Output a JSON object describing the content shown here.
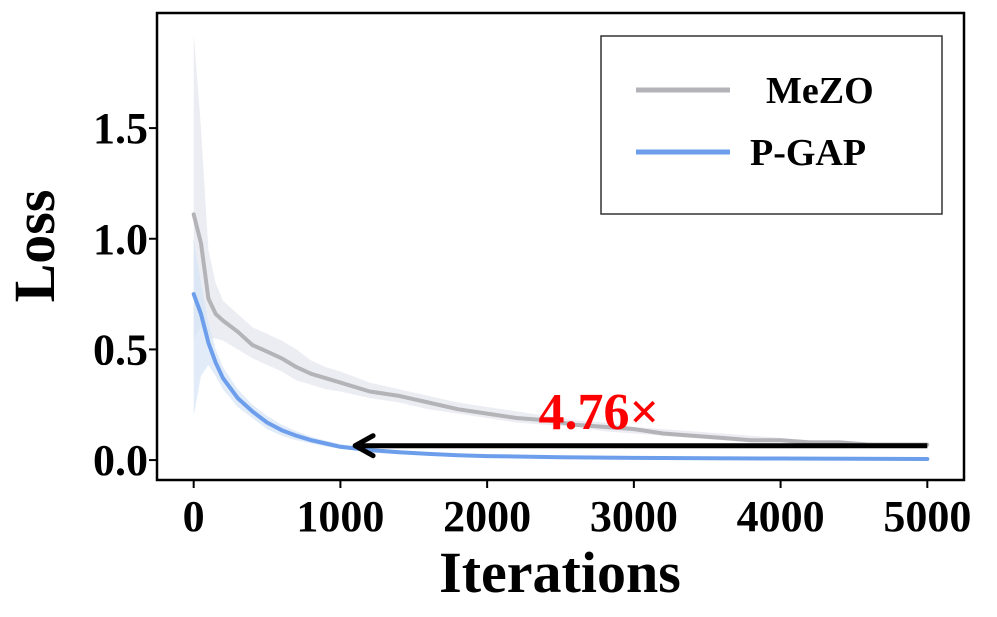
{
  "chart_data": {
    "type": "line",
    "xlabel": "Iterations",
    "ylabel": "Loss",
    "xlim": [
      -250,
      5250
    ],
    "ylim": [
      -0.09,
      2.02
    ],
    "xticks": [
      0,
      1000,
      2000,
      3000,
      4000,
      5000
    ],
    "xtick_labels": [
      "0",
      "1000",
      "2000",
      "3000",
      "4000",
      "5000"
    ],
    "yticks": [
      0.0,
      0.5,
      1.0,
      1.5
    ],
    "ytick_labels": [
      "0.0",
      "0.5",
      "1.0",
      "1.5"
    ],
    "grid": false,
    "legend_position": "top-right",
    "series": [
      {
        "name": "MeZO",
        "color": "#b3b3b8",
        "band_color": "#e4e6ee",
        "x": [
          0,
          50,
          100,
          150,
          200,
          300,
          400,
          500,
          600,
          700,
          800,
          900,
          1000,
          1200,
          1400,
          1600,
          1800,
          2000,
          2200,
          2400,
          2600,
          2800,
          3000,
          3200,
          3400,
          3600,
          3800,
          4000,
          4200,
          4400,
          4600,
          4800,
          5000
        ],
        "y": [
          1.11,
          0.98,
          0.73,
          0.66,
          0.63,
          0.58,
          0.52,
          0.49,
          0.46,
          0.42,
          0.39,
          0.37,
          0.35,
          0.31,
          0.29,
          0.26,
          0.23,
          0.21,
          0.19,
          0.18,
          0.16,
          0.15,
          0.14,
          0.12,
          0.11,
          0.1,
          0.09,
          0.09,
          0.08,
          0.08,
          0.07,
          0.07,
          0.07
        ],
        "band_upper": [
          1.93,
          1.5,
          0.95,
          0.8,
          0.72,
          0.66,
          0.6,
          0.57,
          0.54,
          0.5,
          0.45,
          0.42,
          0.4,
          0.35,
          0.32,
          0.29,
          0.26,
          0.24,
          0.22,
          0.2,
          0.18,
          0.17,
          0.15,
          0.14,
          0.13,
          0.12,
          0.11,
          0.1,
          0.09,
          0.09,
          0.08,
          0.08,
          0.08
        ],
        "band_lower": [
          0.55,
          0.6,
          0.55,
          0.55,
          0.54,
          0.5,
          0.46,
          0.43,
          0.4,
          0.36,
          0.34,
          0.32,
          0.31,
          0.28,
          0.26,
          0.23,
          0.21,
          0.19,
          0.17,
          0.16,
          0.15,
          0.13,
          0.12,
          0.11,
          0.1,
          0.09,
          0.08,
          0.08,
          0.07,
          0.07,
          0.06,
          0.06,
          0.06
        ]
      },
      {
        "name": "P-GAP",
        "color": "#6d9eeb",
        "band_color": "#d6e4f7",
        "x": [
          0,
          50,
          100,
          150,
          200,
          300,
          400,
          500,
          600,
          700,
          800,
          900,
          1000,
          1200,
          1400,
          1600,
          1800,
          2000,
          2500,
          3000,
          3500,
          4000,
          4500,
          5000
        ],
        "y": [
          0.75,
          0.66,
          0.53,
          0.44,
          0.37,
          0.28,
          0.22,
          0.17,
          0.135,
          0.11,
          0.09,
          0.075,
          0.06,
          0.045,
          0.035,
          0.028,
          0.022,
          0.018,
          0.013,
          0.01,
          0.008,
          0.007,
          0.006,
          0.005
        ],
        "band_upper": [
          1.0,
          0.8,
          0.62,
          0.5,
          0.42,
          0.32,
          0.25,
          0.2,
          0.16,
          0.13,
          0.105,
          0.088,
          0.072,
          0.054,
          0.042,
          0.034,
          0.027,
          0.022,
          0.016,
          0.013,
          0.011,
          0.009,
          0.008,
          0.007
        ],
        "band_lower": [
          0.2,
          0.38,
          0.43,
          0.38,
          0.32,
          0.24,
          0.19,
          0.14,
          0.11,
          0.09,
          0.075,
          0.062,
          0.05,
          0.037,
          0.028,
          0.022,
          0.017,
          0.014,
          0.01,
          0.007,
          0.005,
          0.005,
          0.004,
          0.003
        ]
      }
    ],
    "annotation": {
      "text": "4.76×",
      "color": "#ff0000",
      "arrow_from": [
        5000,
        0.065
      ],
      "arrow_to": [
        1100,
        0.065
      ],
      "text_x": 2350,
      "text_y": 0.14
    }
  }
}
